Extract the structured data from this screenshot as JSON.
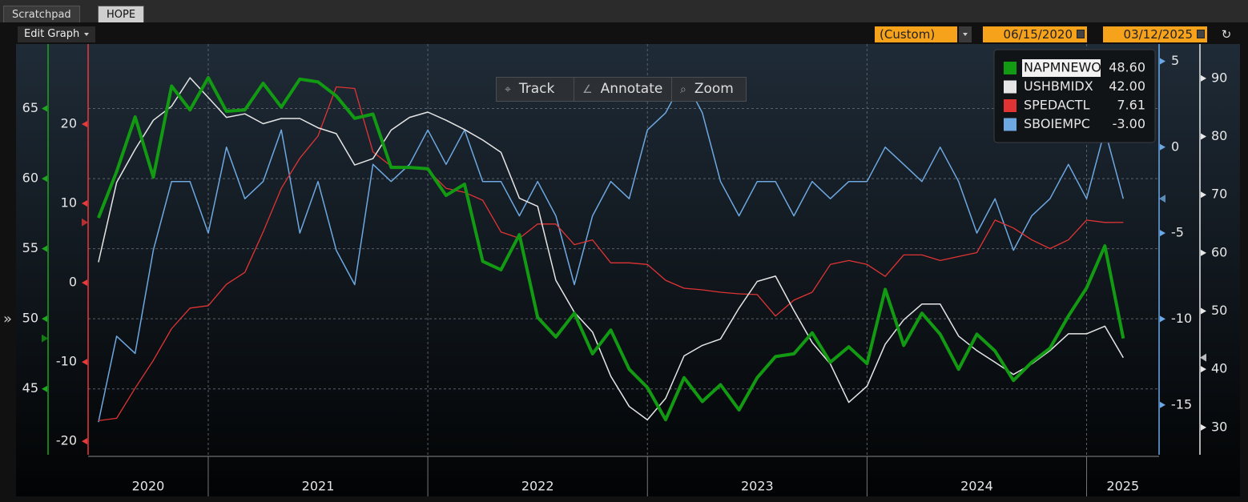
{
  "ui": {
    "tabs": [
      "Scratchpad",
      "HOPE"
    ],
    "edit_graph": "Edit Graph",
    "period": "(Custom)",
    "start_date": "06/15/2020",
    "end_date": "03/12/2025",
    "tools": [
      "Track",
      "Annotate",
      "Zoom"
    ],
    "side": "»"
  },
  "chart_data": {
    "type": "line",
    "x": [
      2020.5,
      2020.583,
      2020.667,
      2020.75,
      2020.833,
      2020.917,
      2021,
      2021.083,
      2021.167,
      2021.25,
      2021.333,
      2021.417,
      2021.5,
      2021.583,
      2021.667,
      2021.75,
      2021.833,
      2021.917,
      2022,
      2022.083,
      2022.167,
      2022.25,
      2022.333,
      2022.417,
      2022.5,
      2022.583,
      2022.667,
      2022.75,
      2022.833,
      2022.917,
      2023,
      2023.083,
      2023.167,
      2023.25,
      2023.333,
      2023.417,
      2023.5,
      2023.583,
      2023.667,
      2023.75,
      2023.833,
      2023.917,
      2024,
      2024.083,
      2024.167,
      2024.25,
      2024.333,
      2024.417,
      2024.5,
      2024.583,
      2024.667,
      2024.75,
      2024.833,
      2024.917,
      2025,
      2025.083,
      2025.167
    ],
    "xlim": [
      2020.453,
      2025.33
    ],
    "xticks": [
      2021,
      2022,
      2023,
      2024,
      2025
    ],
    "year_labels": [
      "2020",
      "2021",
      "2022",
      "2023",
      "2024",
      "2025"
    ],
    "grid": true,
    "axes": [
      {
        "side": "left",
        "color": "#1fa51f",
        "ylim": [
          40.3,
          69.6
        ],
        "yticks": [
          45,
          50,
          55,
          60,
          65
        ]
      },
      {
        "side": "left",
        "color": "#e83a3a",
        "ylim": [
          -21.7,
          30.1
        ],
        "yticks": [
          -20,
          -10,
          0,
          10,
          20
        ]
      },
      {
        "side": "right",
        "color": "#6aa8e6",
        "ylim": [
          -17.9,
          6.0
        ],
        "yticks": [
          -15,
          -10,
          -5,
          0,
          5
        ]
      },
      {
        "side": "right",
        "color": "#e8e8e8",
        "ylim": [
          25.3,
          95.9
        ],
        "yticks": [
          30,
          40,
          50,
          60,
          70,
          80,
          90
        ]
      }
    ],
    "series": [
      {
        "name": "NAPMNEWO",
        "color": "#139a13",
        "axis": 0,
        "last_value_label": "48.60",
        "values": [
          57.2,
          60.5,
          64.4,
          60.1,
          66.6,
          64.9,
          67.2,
          64.8,
          64.9,
          66.8,
          65.1,
          67.1,
          66.9,
          65.9,
          64.3,
          64.6,
          60.8,
          60.8,
          60.7,
          58.8,
          59.6,
          54.1,
          53.5,
          56.0,
          50.1,
          48.7,
          50.4,
          47.5,
          49.2,
          46.4,
          45.1,
          42.8,
          45.8,
          44.1,
          45.3,
          43.5,
          45.8,
          47.3,
          47.5,
          49.0,
          46.9,
          48.0,
          46.8,
          52.1,
          48.1,
          50.4,
          48.9,
          46.4,
          48.9,
          47.7,
          45.6,
          46.9,
          47.9,
          50.2,
          52.2,
          55.2,
          48.6
        ]
      },
      {
        "name": "USHBMIDX",
        "color": "#e6e6e6",
        "axis": 3,
        "last_value_label": "42.00",
        "values": [
          58.4,
          72.1,
          77.8,
          82.8,
          85.2,
          90.1,
          86.7,
          83.3,
          83.9,
          82.2,
          83.1,
          83.1,
          81.5,
          80.5,
          75.1,
          76.2,
          81.1,
          83.3,
          84.2,
          82.8,
          81.2,
          79.4,
          77.3,
          69.4,
          68.0,
          55.3,
          49.8,
          46.4,
          38.8,
          33.6,
          31.3,
          35.0,
          42.3,
          44.1,
          45.2,
          50.5,
          55.1,
          56.0,
          50.1,
          44.6,
          40.9,
          34.3,
          37.1,
          44.3,
          48.5,
          51.2,
          51.2,
          45.7,
          43.2,
          41.2,
          39.1,
          40.9,
          43.2,
          46.1,
          46.1,
          47.4,
          42.0
        ]
      },
      {
        "name": "SPEDACTL",
        "color": "#e03434",
        "axis": 1,
        "last_value_label": "7.61",
        "values": [
          -17.4,
          -17.1,
          -13.3,
          -9.8,
          -5.8,
          -3.2,
          -2.9,
          -0.2,
          1.3,
          6.4,
          11.9,
          15.7,
          18.5,
          24.7,
          24.5,
          16.5,
          14.7,
          14.6,
          14.2,
          11.9,
          11.4,
          10.4,
          6.4,
          5.6,
          7.4,
          7.4,
          4.8,
          5.4,
          2.5,
          2.5,
          2.3,
          0.3,
          -0.7,
          -0.9,
          -1.2,
          -1.4,
          -1.5,
          -4.2,
          -2.2,
          -1.2,
          2.3,
          2.8,
          2.3,
          0.8,
          3.5,
          3.5,
          2.8,
          3.3,
          3.8,
          7.9,
          6.9,
          5.4,
          4.3,
          5.4,
          7.9,
          7.6,
          7.61
        ]
      },
      {
        "name": "SBOIEMPC",
        "color": "#6ea8e0",
        "axis": 2,
        "last_value_label": "-3.00",
        "values": [
          -16,
          -11,
          -12,
          -6,
          -2,
          -2,
          -5,
          0,
          -3,
          -2,
          1,
          -5,
          -2,
          -6,
          -8,
          -1,
          -2,
          -1,
          1,
          -1,
          1,
          -2,
          -2,
          -4,
          -2,
          -4,
          -8,
          -4,
          -2,
          -3,
          1,
          2,
          4,
          2,
          -2,
          -4,
          -2,
          -2,
          -4,
          -2,
          -3,
          -2,
          -2,
          0,
          -1,
          -2,
          0,
          -2,
          -5,
          -3,
          -6,
          -4,
          -3,
          -1,
          -3,
          1,
          -3
        ]
      }
    ]
  }
}
